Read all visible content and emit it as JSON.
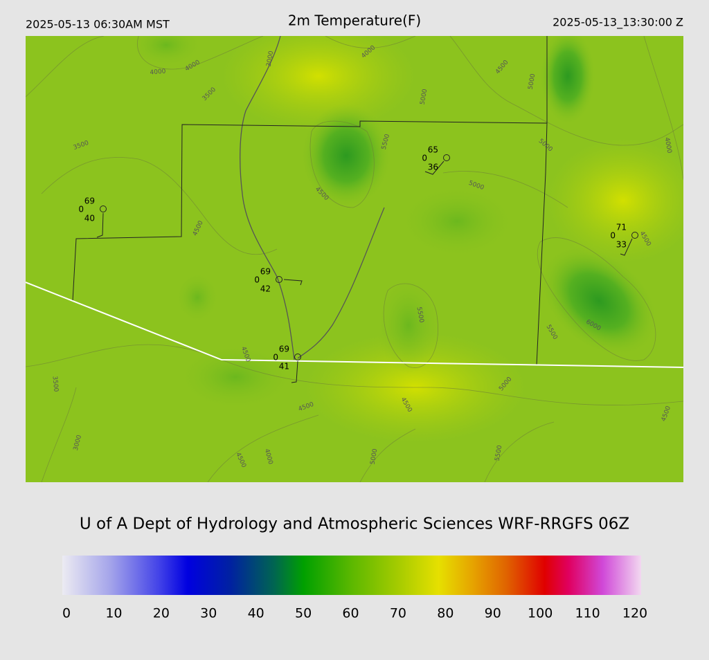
{
  "header": {
    "left": "2025-05-13 06:30AM MST",
    "title": "2m Temperature(F)",
    "right": "2025-05-13_13:30:00 Z"
  },
  "map": {
    "stations": [
      {
        "temperature": 69,
        "other": 0,
        "dewpoint": 40
      },
      {
        "temperature": 65,
        "other": 0,
        "dewpoint": 36
      },
      {
        "temperature": 71,
        "other": 0,
        "dewpoint": 33
      },
      {
        "temperature": 69,
        "other": 0,
        "dewpoint": 42
      },
      {
        "temperature": 69,
        "other": 0,
        "dewpoint": 41
      }
    ],
    "contour_labels": [
      "3000",
      "4000",
      "4000",
      "3500",
      "4000",
      "4500",
      "5000",
      "5000",
      "5500",
      "5000",
      "4000",
      "3500",
      "4500",
      "5000",
      "4500",
      "4500",
      "5500",
      "5500",
      "6000",
      "4500",
      "3500",
      "5000",
      "4500",
      "4500",
      "4500",
      "3000",
      "4000",
      "4500",
      "5000",
      "5500"
    ]
  },
  "footer": "U of A Dept of Hydrology and Atmospheric Sciences WRF-RRGFS 06Z",
  "colorbar": {
    "ticks": [
      0,
      10,
      20,
      30,
      40,
      50,
      60,
      70,
      80,
      90,
      100,
      110,
      120
    ],
    "stops": [
      {
        "value": 0,
        "color": "#ecebf2"
      },
      {
        "value": 10,
        "color": "#a4a4ea"
      },
      {
        "value": 20,
        "color": "#4343e8"
      },
      {
        "value": 26,
        "color": "#0000e0"
      },
      {
        "value": 35,
        "color": "#0022a0"
      },
      {
        "value": 44,
        "color": "#006650"
      },
      {
        "value": 50,
        "color": "#00a000"
      },
      {
        "value": 60,
        "color": "#5cb800"
      },
      {
        "value": 70,
        "color": "#a8cc00"
      },
      {
        "value": 78,
        "color": "#e6e000"
      },
      {
        "value": 85,
        "color": "#e6a400"
      },
      {
        "value": 92,
        "color": "#e06400"
      },
      {
        "value": 100,
        "color": "#e00000"
      },
      {
        "value": 105,
        "color": "#e00060"
      },
      {
        "value": 112,
        "color": "#d048d8"
      },
      {
        "value": 120,
        "color": "#f2d8f0"
      }
    ]
  }
}
